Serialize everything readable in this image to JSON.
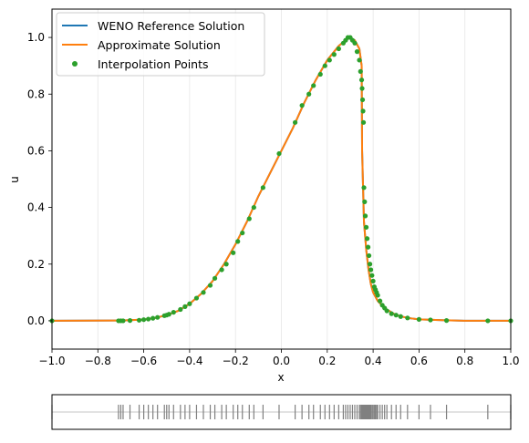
{
  "chart_data": [
    {
      "type": "line",
      "xlabel": "x",
      "ylabel": "u",
      "xlim": [
        -1.0,
        1.0
      ],
      "ylim": [
        -0.1,
        1.1
      ],
      "xticks": [
        -1.0,
        -0.8,
        -0.6,
        -0.4,
        -0.2,
        0.0,
        0.2,
        0.4,
        0.6,
        0.8,
        1.0
      ],
      "xtick_labels": [
        "−1.0",
        "−0.8",
        "−0.6",
        "−0.4",
        "−0.2",
        "0.0",
        "0.2",
        "0.4",
        "0.6",
        "0.8",
        "1.0"
      ],
      "yticks": [
        0.0,
        0.2,
        0.4,
        0.6,
        0.8,
        1.0
      ],
      "ytick_labels": [
        "0.0",
        "0.2",
        "0.4",
        "0.6",
        "0.8",
        "1.0"
      ],
      "grid": "vertical",
      "legend_position": "top-left",
      "series": [
        {
          "name": "WENO Reference Solution",
          "kind": "line",
          "color": "#1f77b4",
          "x": [
            -1.0,
            -0.7,
            -0.6,
            -0.55,
            -0.5,
            -0.45,
            -0.4,
            -0.35,
            -0.3,
            -0.25,
            -0.2,
            -0.15,
            -0.1,
            -0.05,
            0.0,
            0.05,
            0.1,
            0.15,
            0.2,
            0.25,
            0.28,
            0.3,
            0.32,
            0.34,
            0.35,
            0.352,
            0.36,
            0.37,
            0.38,
            0.39,
            0.4,
            0.42,
            0.45,
            0.5,
            0.55,
            0.6,
            0.7,
            0.8,
            1.0
          ],
          "y": [
            0.0,
            0.001,
            0.004,
            0.01,
            0.02,
            0.035,
            0.06,
            0.095,
            0.14,
            0.2,
            0.27,
            0.35,
            0.44,
            0.52,
            0.6,
            0.68,
            0.77,
            0.85,
            0.92,
            0.97,
            0.99,
            1.0,
            0.99,
            0.96,
            0.9,
            0.6,
            0.35,
            0.25,
            0.18,
            0.13,
            0.1,
            0.07,
            0.045,
            0.02,
            0.01,
            0.005,
            0.002,
            0.0,
            0.0
          ]
        },
        {
          "name": "Approximate Solution",
          "kind": "line",
          "color": "#ff7f0e",
          "x": [
            -1.0,
            -0.7,
            -0.6,
            -0.55,
            -0.5,
            -0.45,
            -0.4,
            -0.35,
            -0.3,
            -0.25,
            -0.2,
            -0.15,
            -0.1,
            -0.05,
            0.0,
            0.05,
            0.1,
            0.15,
            0.2,
            0.25,
            0.28,
            0.3,
            0.32,
            0.34,
            0.35,
            0.352,
            0.36,
            0.37,
            0.38,
            0.39,
            0.4,
            0.42,
            0.45,
            0.5,
            0.55,
            0.6,
            0.7,
            0.8,
            1.0
          ],
          "y": [
            0.0,
            0.001,
            0.004,
            0.01,
            0.02,
            0.035,
            0.06,
            0.095,
            0.14,
            0.2,
            0.27,
            0.35,
            0.44,
            0.52,
            0.6,
            0.68,
            0.77,
            0.85,
            0.92,
            0.97,
            0.99,
            1.0,
            0.99,
            0.96,
            0.9,
            0.6,
            0.35,
            0.25,
            0.18,
            0.13,
            0.1,
            0.07,
            0.045,
            0.02,
            0.01,
            0.005,
            0.002,
            0.0,
            0.0
          ]
        },
        {
          "name": "Interpolation Points",
          "kind": "scatter",
          "color": "#2ca02c",
          "x": [
            -1.0,
            -0.71,
            -0.7,
            -0.69,
            -0.66,
            -0.62,
            -0.6,
            -0.58,
            -0.56,
            -0.54,
            -0.51,
            -0.5,
            -0.49,
            -0.47,
            -0.44,
            -0.42,
            -0.4,
            -0.37,
            -0.34,
            -0.31,
            -0.29,
            -0.26,
            -0.24,
            -0.21,
            -0.19,
            -0.17,
            -0.14,
            -0.12,
            -0.08,
            -0.01,
            0.06,
            0.09,
            0.12,
            0.14,
            0.17,
            0.19,
            0.21,
            0.23,
            0.25,
            0.27,
            0.28,
            0.29,
            0.3,
            0.31,
            0.32,
            0.33,
            0.34,
            0.345,
            0.35,
            0.352,
            0.354,
            0.356,
            0.358,
            0.36,
            0.363,
            0.366,
            0.37,
            0.374,
            0.378,
            0.382,
            0.386,
            0.39,
            0.395,
            0.4,
            0.405,
            0.41,
            0.415,
            0.42,
            0.43,
            0.44,
            0.45,
            0.46,
            0.48,
            0.5,
            0.52,
            0.55,
            0.6,
            0.65,
            0.72,
            0.9,
            1.0
          ],
          "y": [
            0.0,
            0.0,
            0.0,
            0.0,
            0.001,
            0.002,
            0.004,
            0.006,
            0.009,
            0.012,
            0.018,
            0.02,
            0.023,
            0.03,
            0.04,
            0.05,
            0.06,
            0.08,
            0.1,
            0.125,
            0.15,
            0.18,
            0.2,
            0.24,
            0.28,
            0.31,
            0.36,
            0.4,
            0.47,
            0.59,
            0.7,
            0.76,
            0.8,
            0.83,
            0.87,
            0.9,
            0.92,
            0.94,
            0.96,
            0.98,
            0.99,
            1.0,
            1.0,
            0.99,
            0.98,
            0.95,
            0.92,
            0.88,
            0.85,
            0.82,
            0.78,
            0.74,
            0.7,
            0.47,
            0.42,
            0.37,
            0.33,
            0.29,
            0.26,
            0.23,
            0.2,
            0.18,
            0.16,
            0.14,
            0.12,
            0.11,
            0.1,
            0.09,
            0.07,
            0.055,
            0.045,
            0.035,
            0.025,
            0.02,
            0.015,
            0.01,
            0.005,
            0.003,
            0.001,
            0.0,
            0.0
          ]
        }
      ]
    },
    {
      "type": "scatter",
      "marker": "tick",
      "xlim": [
        -1.0,
        1.0
      ],
      "color": "#808080",
      "x": [
        -1.0,
        -0.71,
        -0.7,
        -0.69,
        -0.66,
        -0.62,
        -0.6,
        -0.58,
        -0.56,
        -0.54,
        -0.51,
        -0.5,
        -0.49,
        -0.47,
        -0.44,
        -0.42,
        -0.4,
        -0.37,
        -0.34,
        -0.31,
        -0.29,
        -0.26,
        -0.24,
        -0.21,
        -0.19,
        -0.17,
        -0.14,
        -0.12,
        -0.08,
        -0.01,
        0.06,
        0.09,
        0.12,
        0.14,
        0.17,
        0.19,
        0.21,
        0.23,
        0.25,
        0.27,
        0.28,
        0.29,
        0.3,
        0.31,
        0.32,
        0.33,
        0.34,
        0.345,
        0.35,
        0.352,
        0.354,
        0.356,
        0.358,
        0.36,
        0.363,
        0.366,
        0.37,
        0.374,
        0.378,
        0.382,
        0.386,
        0.39,
        0.395,
        0.4,
        0.405,
        0.41,
        0.415,
        0.42,
        0.43,
        0.44,
        0.45,
        0.46,
        0.48,
        0.5,
        0.52,
        0.55,
        0.6,
        0.65,
        0.72,
        0.9,
        1.0
      ]
    }
  ]
}
